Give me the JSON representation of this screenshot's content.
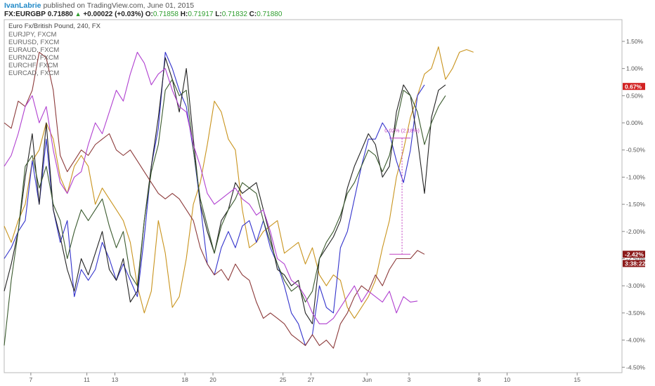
{
  "header": {
    "author": "IvanLabrie",
    "published": "published on TradingView.com, June 01, 2015",
    "symbol": "FX:EURGBP",
    "last": "0.71880",
    "change_arrow": "▲",
    "change": "+0.00022 (+0.03%)",
    "o_label": "O:",
    "o_value": "0.71858",
    "h_label": "H:",
    "h_value": "0.71917",
    "l_label": "L:",
    "l_value": "0.71832",
    "c_label": "C:",
    "c_value": "0.71880"
  },
  "chart_data": {
    "type": "line",
    "title": "Euro Fx/British Pound, 240, FX",
    "legend": [
      "EURJPY, FXCM",
      "EURUSD, FXCM",
      "EURAUD, FXCM",
      "EURNZD, FXCM",
      "EURCHF, FXCM",
      "EURCAD, FXCM"
    ],
    "legend_placement": "top-left",
    "y_unit": "%",
    "ylim": [
      -4.6,
      1.9
    ],
    "y_ticks": [
      1.5,
      1.0,
      0.5,
      0.0,
      -0.5,
      -1.0,
      -1.5,
      -2.0,
      -2.5,
      -3.0,
      -3.5,
      -4.0,
      -4.5
    ],
    "y_tick_labels": [
      "1.50%",
      "1.00%",
      "0.50%",
      "0.00%",
      "-0.50%",
      "-1.00%",
      "-1.50%",
      "-2.00%",
      "-2.50%",
      "-3.00%",
      "-3.50%",
      "-4.00%",
      "-4.50%"
    ],
    "x_ticks": [
      {
        "label": "7",
        "t": 7
      },
      {
        "label": "11",
        "t": 11
      },
      {
        "label": "13",
        "t": 13
      },
      {
        "label": "18",
        "t": 18
      },
      {
        "label": "20",
        "t": 20
      },
      {
        "label": "25",
        "t": 25
      },
      {
        "label": "27",
        "t": 27
      },
      {
        "label": "Jun",
        "t": 31
      },
      {
        "label": "3",
        "t": 34
      },
      {
        "label": "8",
        "t": 39
      },
      {
        "label": "10",
        "t": 41
      },
      {
        "label": "15",
        "t": 46
      }
    ],
    "xlim": [
      5.1,
      49.2
    ],
    "grid": false,
    "series": [
      {
        "color": "#c9941e",
        "t0": 5.1,
        "dt": 0.5,
        "values": [
          -1.9,
          -2.2,
          -1.8,
          -1.5,
          -0.7,
          -0.5,
          0.0,
          -0.3,
          -1.0,
          -1.3,
          -0.8,
          -0.6,
          -0.8,
          -1.5,
          -1.2,
          -1.4,
          -1.6,
          -1.8,
          -2.2,
          -3.0,
          -3.5,
          -3.1,
          -1.8,
          -2.4,
          -3.4,
          -3.2,
          -2.5,
          -1.5,
          -1.1,
          -0.4,
          0.4,
          0.2,
          -0.3,
          -0.5,
          -1.6,
          -2.3,
          -2.2,
          -2.0,
          -1.9,
          -1.8,
          -2.4,
          -2.3,
          -2.2,
          -2.6,
          -2.3,
          -2.8,
          -3.0,
          -2.8,
          -2.9,
          -3.4,
          -3.6,
          -3.4,
          -3.2,
          -2.9,
          -2.3,
          -1.8,
          -1.0,
          -0.5,
          0.1,
          0.5,
          0.9,
          1.0,
          1.4,
          0.8,
          1.0,
          1.3,
          1.35,
          1.3
        ]
      },
      {
        "color": "#3333cc",
        "t0": 5.1,
        "dt": 0.5,
        "values": [
          -2.5,
          -2.3,
          -2.0,
          -1.8,
          -0.7,
          -1.5,
          -0.3,
          -1.6,
          -2.2,
          -1.8,
          -3.2,
          -2.7,
          -2.9,
          -2.7,
          -2.2,
          -2.5,
          -2.9,
          -2.6,
          -2.9,
          -3.2,
          -2.1,
          -0.8,
          -0.1,
          1.3,
          1.0,
          0.6,
          0.3,
          -0.5,
          -1.5,
          -2.6,
          -2.8,
          -2.3,
          -2.0,
          -2.3,
          -1.9,
          -1.8,
          -2.2,
          -1.8,
          -2.3,
          -2.6,
          -3.0,
          -3.5,
          -3.7,
          -4.1,
          -3.9,
          -3.0,
          -3.4,
          -3.5,
          -2.3,
          -2.0,
          -1.4,
          -0.8,
          -0.3,
          -0.3,
          0.0,
          -0.2,
          -0.7,
          -1.1,
          -0.5,
          0.5,
          0.7
        ]
      },
      {
        "color": "#222222",
        "t0": 5.1,
        "dt": 0.5,
        "values": [
          -3.1,
          -2.6,
          -2.0,
          -1.0,
          -0.2,
          -1.5,
          0.0,
          -1.6,
          -2.1,
          -2.7,
          -3.1,
          -2.5,
          -2.8,
          -2.4,
          -2.0,
          -2.7,
          -2.9,
          -2.5,
          -3.3,
          -3.1,
          -1.8,
          -0.8,
          0.1,
          1.2,
          0.8,
          0.2,
          1.0,
          -0.3,
          -1.5,
          -2.0,
          -2.4,
          -1.8,
          -1.6,
          -1.1,
          -1.3,
          -1.2,
          -1.1,
          -1.6,
          -2.1,
          -2.7,
          -2.8,
          -3.0,
          -2.9,
          -3.5,
          -3.7,
          -2.5,
          -2.3,
          -2.1,
          -1.8,
          -1.2,
          -0.8,
          -0.5,
          -0.2,
          -0.4,
          -1.0,
          -0.8,
          0.2,
          0.7,
          0.5,
          -0.3,
          -1.3,
          0.1,
          0.6,
          0.7
        ]
      },
      {
        "color": "#3a5a2e",
        "t0": 5.1,
        "dt": 0.5,
        "values": [
          -4.1,
          -2.9,
          -2.0,
          -0.8,
          -0.6,
          -1.2,
          -0.8,
          -1.5,
          -1.8,
          -2.5,
          -2.0,
          -1.6,
          -1.8,
          -1.6,
          -1.4,
          -1.9,
          -2.3,
          -2.0,
          -2.8,
          -3.0,
          -1.8,
          -0.9,
          -0.4,
          0.6,
          0.8,
          0.5,
          0.6,
          -0.5,
          -1.4,
          -1.9,
          -2.4,
          -1.9,
          -1.6,
          -1.4,
          -1.1,
          -1.2,
          -1.3,
          -1.8,
          -2.2,
          -2.6,
          -2.9,
          -3.1,
          -3.0,
          -3.3,
          -3.1,
          -2.5,
          -2.2,
          -2.0,
          -1.7,
          -1.3,
          -1.1,
          -0.8,
          -0.5,
          -0.6,
          -0.9,
          -0.6,
          0.0,
          0.6,
          0.5,
          0.2,
          -0.4,
          0.0,
          0.3,
          0.5
        ]
      },
      {
        "color": "#8c3a3a",
        "t0": 5.1,
        "dt": 0.5,
        "values": [
          0.0,
          -0.1,
          0.4,
          0.3,
          0.6,
          1.3,
          1.2,
          0.6,
          -0.6,
          -0.9,
          -0.7,
          -0.5,
          -0.6,
          -0.4,
          -0.3,
          -0.2,
          -0.5,
          -0.6,
          -0.5,
          -0.7,
          -0.9,
          -1.1,
          -1.3,
          -1.4,
          -1.3,
          -1.4,
          -1.6,
          -1.8,
          -2.3,
          -2.6,
          -2.8,
          -2.7,
          -2.9,
          -2.6,
          -2.8,
          -2.9,
          -3.3,
          -3.6,
          -3.5,
          -3.6,
          -3.7,
          -3.9,
          -4.0,
          -4.1,
          -3.9,
          -4.1,
          -4.0,
          -4.15,
          -3.7,
          -3.5,
          -3.2,
          -3.0,
          -3.1,
          -2.8,
          -3.0,
          -2.7,
          -2.5,
          -2.5,
          -2.5,
          -2.35,
          -2.42
        ]
      },
      {
        "color": "#b040d0",
        "t0": 5.1,
        "dt": 0.5,
        "values": [
          -0.8,
          -0.6,
          -0.2,
          0.3,
          0.5,
          0.0,
          0.3,
          -0.5,
          -1.1,
          -1.3,
          -1.0,
          -0.9,
          -0.4,
          0.0,
          -0.2,
          0.2,
          0.6,
          0.4,
          0.9,
          1.3,
          1.1,
          0.7,
          0.9,
          1.0,
          0.6,
          0.3,
          0.2,
          -0.4,
          -0.8,
          -1.3,
          -1.5,
          -1.4,
          -1.3,
          -1.2,
          -1.4,
          -1.5,
          -1.7,
          -1.6,
          -2.0,
          -2.5,
          -2.6,
          -2.9,
          -3.0,
          -3.2,
          -3.5,
          -3.7,
          -3.7,
          -3.6,
          -3.4,
          -3.2,
          -3.0,
          -3.3,
          -3.1,
          -3.2,
          -3.3,
          -3.1,
          -3.5,
          -3.2,
          -3.3,
          -3.28
        ]
      }
    ],
    "measure": {
      "label": "0.02% (2.18%)",
      "t": 33.5,
      "t_from": 32.6,
      "t_to": 34.1,
      "y_top": -0.28,
      "y_bottom": -2.42
    },
    "badges": [
      {
        "text": "0.67%",
        "y": 0.67,
        "color": "#d22222"
      },
      {
        "text": "-2.42%",
        "y": -2.42,
        "color": "#8b1a1a"
      },
      {
        "text": "3:38:22",
        "y": -2.59,
        "color": "#8b1a1a"
      }
    ]
  }
}
